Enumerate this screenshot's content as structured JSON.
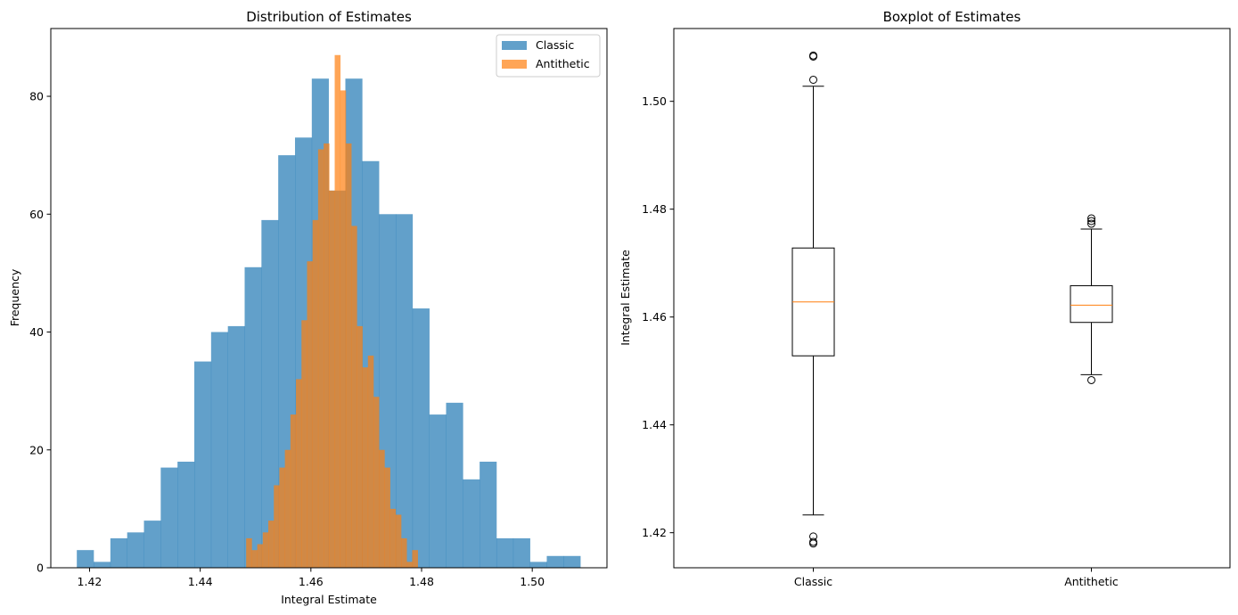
{
  "chart_data": [
    {
      "type": "histogram",
      "title": "Distribution of Estimates",
      "xlabel": "Integral Estimate",
      "ylabel": "Frequency",
      "xlim": [
        1.413,
        1.5135
      ],
      "ylim": [
        0,
        91.5
      ],
      "xticks": [
        1.42,
        1.44,
        1.46,
        1.48,
        1.5
      ],
      "xtick_labels": [
        "1.42",
        "1.44",
        "1.46",
        "1.48",
        "1.50"
      ],
      "yticks": [
        0,
        20,
        40,
        60,
        80
      ],
      "ytick_labels": [
        "0",
        "20",
        "40",
        "60",
        "80"
      ],
      "grid": false,
      "legend": {
        "placement": "top-right",
        "entries": [
          "Classic",
          "Antithetic"
        ]
      },
      "series": [
        {
          "name": "Classic",
          "color": "#1f77b4",
          "alpha": 0.7,
          "bin_start": 1.4177,
          "bin_width": 0.003033,
          "counts": [
            3,
            1,
            5,
            6,
            8,
            17,
            18,
            35,
            40,
            41,
            51,
            59,
            70,
            73,
            83,
            64,
            83,
            69,
            60,
            60,
            44,
            26,
            28,
            15,
            18,
            5,
            5,
            1,
            2,
            2
          ]
        },
        {
          "name": "Antithetic",
          "color": "#ff7f0e",
          "alpha": 0.7,
          "bin_start": 1.4483,
          "bin_width": 0.001,
          "counts": [
            5,
            3,
            4,
            6,
            8,
            14,
            17,
            20,
            26,
            32,
            42,
            52,
            59,
            71,
            72,
            64,
            87,
            81,
            72,
            58,
            41,
            34,
            36,
            29,
            20,
            17,
            10,
            9,
            5,
            1,
            3
          ]
        }
      ]
    },
    {
      "type": "boxplot",
      "title": "Boxplot of Estimates",
      "ylabel": "Integral Estimate",
      "xlabel": "",
      "categories": [
        "Classic",
        "Antithetic"
      ],
      "ylim": [
        1.4135,
        1.5135
      ],
      "yticks": [
        1.42,
        1.44,
        1.46,
        1.48,
        1.5
      ],
      "ytick_labels": [
        "1.42",
        "1.44",
        "1.46",
        "1.48",
        "1.50"
      ],
      "grid": false,
      "median_color": "#ff7f0e",
      "boxes": [
        {
          "name": "Classic",
          "whisker_low": 1.4233,
          "q1": 1.4528,
          "median": 1.4628,
          "q3": 1.4728,
          "whisker_high": 1.5028,
          "outliers": [
            1.5085,
            1.5083,
            1.504,
            1.4193,
            1.4183,
            1.418
          ]
        },
        {
          "name": "Antithetic",
          "whisker_low": 1.4493,
          "q1": 1.459,
          "median": 1.4622,
          "q3": 1.4658,
          "whisker_high": 1.4763,
          "outliers": [
            1.4783,
            1.4778,
            1.4773,
            1.4483
          ]
        }
      ]
    }
  ]
}
